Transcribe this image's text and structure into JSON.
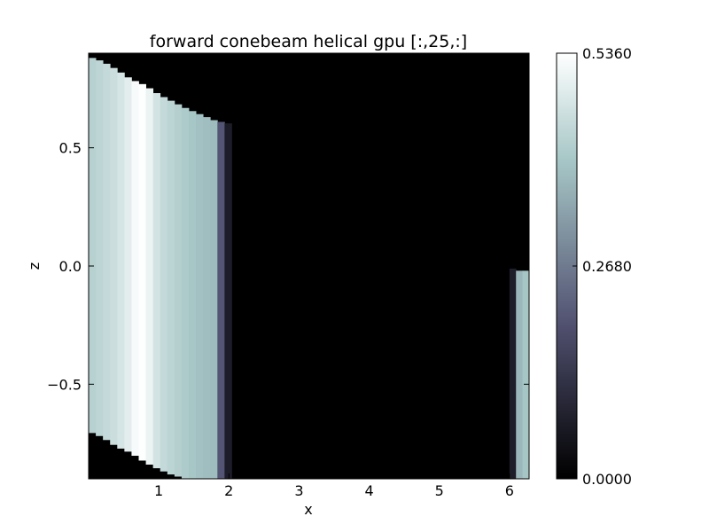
{
  "chart_data": {
    "type": "heatmap",
    "title": "forward conebeam helical gpu [:,25,:]",
    "xlabel": "x",
    "ylabel": "z",
    "xlim": [
      0,
      6.28
    ],
    "ylim": [
      -0.9,
      0.9
    ],
    "x_ticks": [
      {
        "value": 1,
        "label": "1"
      },
      {
        "value": 2,
        "label": "2"
      },
      {
        "value": 3,
        "label": "3"
      },
      {
        "value": 4,
        "label": "4"
      },
      {
        "value": 5,
        "label": "5"
      },
      {
        "value": 6,
        "label": "6"
      }
    ],
    "y_ticks": [
      {
        "value": 0.5,
        "label": "0.5"
      },
      {
        "value": 0.0,
        "label": "0.0"
      },
      {
        "value": -0.5,
        "label": "−0.5"
      }
    ],
    "colorbar": {
      "colormap": "bone",
      "vmin": 0.0,
      "vmax": 0.536,
      "ticks": [
        {
          "value": 0.0,
          "label": "0.0000"
        },
        {
          "value": 0.268,
          "label": "0.2680"
        },
        {
          "value": 0.536,
          "label": "0.5360"
        }
      ]
    },
    "background_value": 0.0,
    "regions": [
      {
        "name": "left band",
        "x_start": 0.0,
        "x_end": 2.04,
        "top_edge": [
          [
            0.0,
            0.885
          ],
          [
            0.2,
            0.865
          ],
          [
            0.4,
            0.83
          ],
          [
            0.6,
            0.79
          ],
          [
            0.8,
            0.765
          ],
          [
            1.0,
            0.725
          ],
          [
            1.2,
            0.695
          ],
          [
            1.4,
            0.665
          ],
          [
            1.6,
            0.64
          ],
          [
            1.8,
            0.615
          ],
          [
            2.04,
            0.6
          ]
        ],
        "bottom_edge": [
          [
            0.0,
            -0.7
          ],
          [
            0.2,
            -0.725
          ],
          [
            0.4,
            -0.765
          ],
          [
            0.6,
            -0.79
          ],
          [
            0.8,
            -0.83
          ],
          [
            1.0,
            -0.86
          ],
          [
            1.2,
            -0.885
          ],
          [
            1.4,
            -0.9
          ],
          [
            2.04,
            -0.9
          ]
        ],
        "profile": [
          [
            0.0,
            0.42
          ],
          [
            0.2,
            0.44
          ],
          [
            0.4,
            0.46
          ],
          [
            0.55,
            0.49
          ],
          [
            0.65,
            0.52
          ],
          [
            0.72,
            0.536
          ],
          [
            0.82,
            0.53
          ],
          [
            0.9,
            0.49
          ],
          [
            1.0,
            0.46
          ],
          [
            1.1,
            0.44
          ],
          [
            1.2,
            0.43
          ],
          [
            1.3,
            0.42
          ],
          [
            1.4,
            0.41
          ],
          [
            1.5,
            0.4
          ],
          [
            1.6,
            0.39
          ],
          [
            1.7,
            0.385
          ],
          [
            1.8,
            0.38
          ],
          [
            1.85,
            0.25
          ],
          [
            1.92,
            0.16
          ],
          [
            1.98,
            0.08
          ],
          [
            2.04,
            0.02
          ]
        ]
      },
      {
        "name": "right strip",
        "x_start": 6.0,
        "x_end": 6.28,
        "top_edge": [
          [
            6.0,
            -0.005
          ],
          [
            6.12,
            -0.02
          ],
          [
            6.28,
            -0.02
          ]
        ],
        "bottom_edge": [
          [
            6.0,
            -0.9
          ],
          [
            6.28,
            -0.9
          ]
        ],
        "profile": [
          [
            6.0,
            0.02
          ],
          [
            6.04,
            0.06
          ],
          [
            6.08,
            0.14
          ],
          [
            6.12,
            0.36
          ],
          [
            6.18,
            0.4
          ],
          [
            6.28,
            0.4
          ]
        ]
      }
    ]
  }
}
